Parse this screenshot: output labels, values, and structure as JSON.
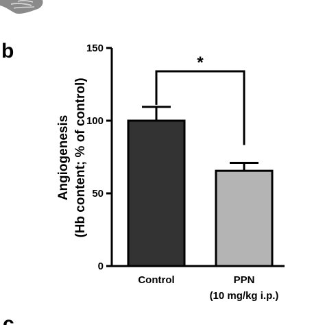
{
  "panels": {
    "b": "b",
    "c": "c"
  },
  "chart_data": {
    "type": "bar",
    "categories": [
      "Control",
      "PPN"
    ],
    "category_sublabels": [
      "",
      "(10 mg/kg i.p.)"
    ],
    "values": [
      100,
      65.5
    ],
    "errors": [
      9.5,
      5.5
    ],
    "colors": [
      "#333333",
      "#b4b4b4"
    ],
    "title": "",
    "xlabel": "",
    "ylabel": "Angiogenesis",
    "ylabel_line2": "(Hb content; % of control)",
    "ylim": [
      0,
      150
    ],
    "yticks": [
      0,
      50,
      100,
      150
    ],
    "significance": {
      "pair": [
        0,
        1
      ],
      "label": "*"
    },
    "grid": false,
    "legend": "none"
  }
}
